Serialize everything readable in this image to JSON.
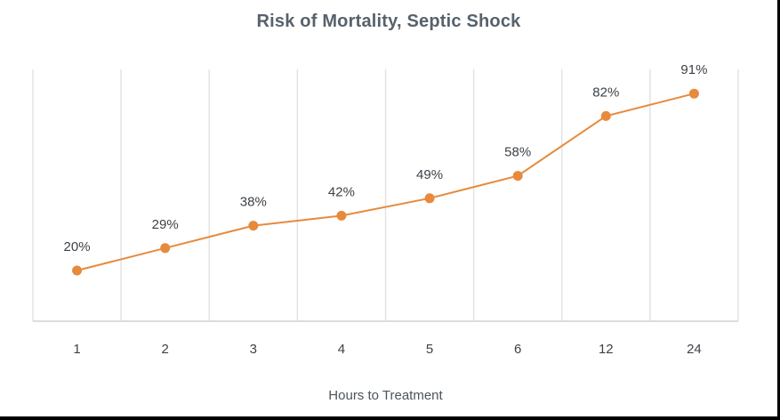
{
  "title": "Risk of Mortality, Septic Shock",
  "chart_data": {
    "type": "line",
    "title": "Risk of Mortality, Septic Shock",
    "xlabel": "Hours to Treatment",
    "ylabel": "",
    "categories": [
      "1",
      "2",
      "3",
      "4",
      "5",
      "6",
      "12",
      "24"
    ],
    "values": [
      20,
      29,
      38,
      42,
      49,
      58,
      82,
      91
    ],
    "data_labels": [
      "20%",
      "29%",
      "38%",
      "42%",
      "49%",
      "58%",
      "82%",
      "91%"
    ],
    "ylim": [
      0,
      100
    ],
    "grid": "vertical-only",
    "legend": false,
    "colors": {
      "line": "#E78A3C",
      "marker": "#E78A3C",
      "gridline": "#E3E3E3",
      "baseline": "#DCDCDC",
      "data_label": "#3C4247",
      "tick_label": "#3C4247",
      "title": "#56626C",
      "axis_title": "#4D545B"
    }
  }
}
